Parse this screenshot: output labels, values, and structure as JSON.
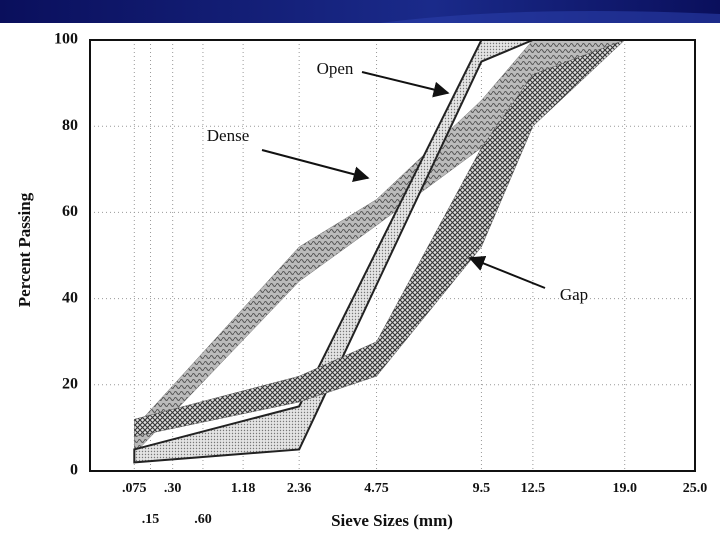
{
  "chart_data": {
    "type": "band",
    "x_label": "Sieve Sizes (mm)",
    "y_label": "Percent Passing",
    "x_scale_power": 0.45,
    "xlim": [
      0,
      25
    ],
    "ylim": [
      0,
      100
    ],
    "xticks": [
      {
        "value": 0.075,
        "label": ".075"
      },
      {
        "value": 0.15,
        "label": ".15"
      },
      {
        "value": 0.3,
        "label": ".30"
      },
      {
        "value": 0.6,
        "label": ".60"
      },
      1.18,
      2.36,
      4.75,
      9.5,
      12.5,
      {
        "value": 19,
        "label": "19.0"
      },
      {
        "value": 25,
        "label": "25.0"
      }
    ],
    "yticks": [
      0,
      20,
      40,
      60,
      80,
      100
    ],
    "grid": true,
    "series": [
      {
        "name": "Dense",
        "color": "#777777",
        "pattern": "wave",
        "x": [
          0.075,
          2.36,
          4.75,
          9.5,
          12.5,
          19
        ],
        "lower": [
          4,
          44,
          57,
          75,
          90,
          100
        ],
        "upper": [
          10,
          52,
          63,
          86,
          100,
          100
        ]
      },
      {
        "name": "Open",
        "color": "#999999",
        "pattern": "dots",
        "x": [
          0.075,
          2.36,
          9.5,
          12.5
        ],
        "lower": [
          2,
          5,
          95,
          100
        ],
        "upper": [
          5,
          15,
          100,
          100
        ]
      },
      {
        "name": "Gap",
        "color": "#555555",
        "pattern": "crosshatch",
        "x": [
          0.075,
          2.36,
          4.75,
          9.5,
          12.5,
          19
        ],
        "lower": [
          8,
          16,
          22,
          52,
          80,
          100
        ],
        "upper": [
          12,
          22,
          30,
          75,
          92,
          100
        ]
      }
    ]
  }
}
